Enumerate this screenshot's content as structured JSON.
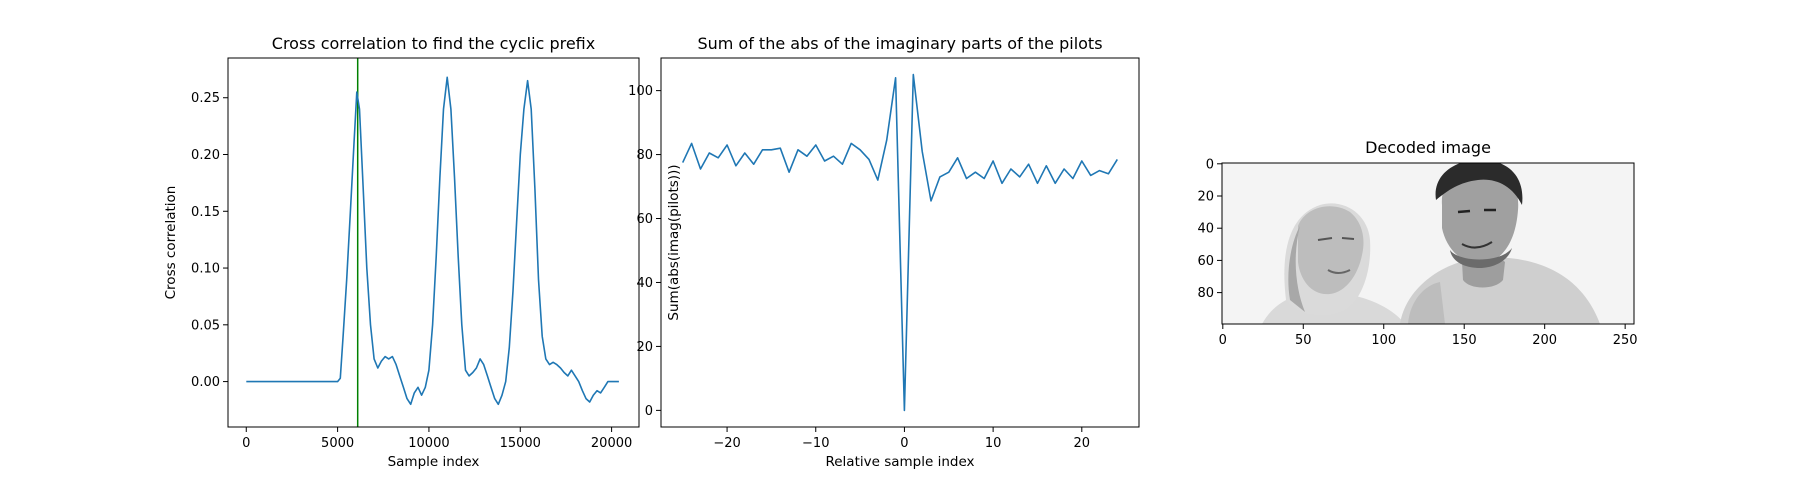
{
  "colors": {
    "series": "#1f77b4",
    "marker_line": "#008000",
    "axes": "#000000",
    "background": "#ffffff"
  },
  "chart_data": [
    {
      "type": "line",
      "title": "Cross correlation to find the cyclic prefix",
      "xlabel": "Sample index",
      "ylabel": "Cross correlation",
      "xlim": [
        -1000,
        21500
      ],
      "ylim": [
        -0.04,
        0.285
      ],
      "xticks": [
        0,
        5000,
        10000,
        15000,
        20000
      ],
      "xtick_labels": [
        "0",
        "5000",
        "10000",
        "15000",
        "20000"
      ],
      "yticks": [
        0.0,
        0.05,
        0.1,
        0.15,
        0.2,
        0.25
      ],
      "ytick_labels": [
        "0.00",
        "0.05",
        "0.10",
        "0.15",
        "0.20",
        "0.25"
      ],
      "grid": false,
      "vline_x": 6100,
      "series": [
        {
          "x": [
            0,
            1000,
            2000,
            3000,
            4000,
            5000,
            5150,
            5300,
            5500,
            5700,
            5900,
            6050,
            6200,
            6400,
            6600,
            6800,
            7000,
            7200,
            7400,
            7600,
            7800,
            8000,
            8200,
            8400,
            8600,
            8800,
            9000,
            9200,
            9400,
            9600,
            9800,
            10000,
            10200,
            10400,
            10600,
            10800,
            11000,
            11200,
            11400,
            11600,
            11800,
            12000,
            12200,
            12400,
            12600,
            12800,
            13000,
            13200,
            13400,
            13600,
            13800,
            14000,
            14200,
            14400,
            14600,
            14800,
            15000,
            15200,
            15400,
            15600,
            15800,
            16000,
            16200,
            16400,
            16600,
            16800,
            17000,
            17200,
            17400,
            17600,
            17800,
            18000,
            18200,
            18400,
            18600,
            18800,
            19000,
            19200,
            19400,
            19600,
            19800,
            20000,
            20200,
            20400
          ],
          "y": [
            0,
            0,
            0,
            0,
            0,
            0,
            0.003,
            0.04,
            0.09,
            0.15,
            0.21,
            0.255,
            0.24,
            0.17,
            0.1,
            0.05,
            0.02,
            0.012,
            0.018,
            0.022,
            0.02,
            0.022,
            0.015,
            0.005,
            -0.005,
            -0.015,
            -0.02,
            -0.01,
            -0.005,
            -0.012,
            -0.005,
            0.01,
            0.05,
            0.11,
            0.18,
            0.24,
            0.268,
            0.24,
            0.18,
            0.11,
            0.05,
            0.01,
            0.005,
            0.008,
            0.012,
            0.02,
            0.015,
            0.005,
            -0.005,
            -0.015,
            -0.02,
            -0.012,
            0,
            0.03,
            0.08,
            0.14,
            0.2,
            0.24,
            0.265,
            0.24,
            0.17,
            0.09,
            0.04,
            0.02,
            0.015,
            0.017,
            0.015,
            0.012,
            0.008,
            0.005,
            0.01,
            0.005,
            0,
            -0.008,
            -0.015,
            -0.018,
            -0.012,
            -0.008,
            -0.01,
            -0.005,
            0,
            0,
            0,
            0
          ]
        }
      ]
    },
    {
      "type": "line",
      "title": "Sum of the abs of the imaginary parts of the pilots",
      "xlabel": "Relative sample index",
      "ylabel": "Sum(abs(imag(pilots)))",
      "xlim": [
        -27.45,
        26.45
      ],
      "ylim": [
        -5.2,
        110.2
      ],
      "xticks": [
        -20,
        -10,
        0,
        10,
        20
      ],
      "xtick_labels": [
        "−20",
        "−10",
        "0",
        "10",
        "20"
      ],
      "yticks": [
        0,
        20,
        40,
        60,
        80,
        100
      ],
      "ytick_labels": [
        "0",
        "20",
        "40",
        "60",
        "80",
        "100"
      ],
      "grid": false,
      "series": [
        {
          "x": [
            -25,
            -24,
            -23,
            -22,
            -21,
            -20,
            -19,
            -18,
            -17,
            -16,
            -15,
            -14,
            -13,
            -12,
            -11,
            -10,
            -9,
            -8,
            -7,
            -6,
            -5,
            -4,
            -3,
            -2,
            -1,
            0,
            1,
            2,
            3,
            4,
            5,
            6,
            7,
            8,
            9,
            10,
            11,
            12,
            13,
            14,
            15,
            16,
            17,
            18,
            19,
            20,
            21,
            22,
            23,
            24
          ],
          "y": [
            77.5,
            83.5,
            75.5,
            80.5,
            79,
            83,
            76.5,
            80.5,
            77,
            81.5,
            81.5,
            82,
            74.5,
            81.5,
            79.5,
            83,
            78,
            79.5,
            77,
            83.5,
            81.5,
            78.5,
            72,
            84.5,
            104,
            0,
            105,
            81,
            65.5,
            73,
            74.5,
            79,
            72.5,
            74.5,
            72.5,
            78,
            71,
            75.5,
            73,
            77,
            71,
            76.5,
            71,
            75.5,
            72.5,
            78,
            73.5,
            75,
            74,
            78.5
          ]
        }
      ]
    },
    {
      "type": "other",
      "title": "Decoded image",
      "xlabel": "",
      "ylabel": "",
      "xlim": [
        -0.5,
        255.5
      ],
      "ylim": [
        99.5,
        -0.5
      ],
      "xticks": [
        0,
        50,
        100,
        150,
        200,
        250
      ],
      "xtick_labels": [
        "0",
        "50",
        "100",
        "150",
        "200",
        "250"
      ],
      "yticks": [
        0,
        20,
        40,
        60,
        80
      ],
      "ytick_labels": [
        "0",
        "20",
        "40",
        "60",
        "80"
      ],
      "grid": false
    }
  ]
}
